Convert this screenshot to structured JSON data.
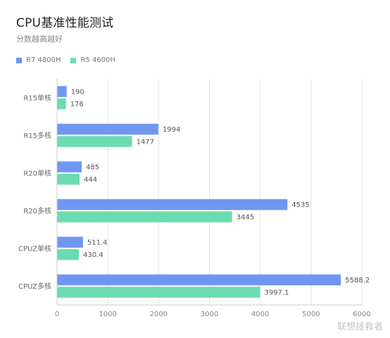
{
  "title": "CPU基准性能测试",
  "subtitle": "分数越高越好",
  "watermark": "联想拯救者",
  "colors": {
    "r7": "#6f97f2",
    "r5": "#6ddbb1",
    "grid": "#e4e4e4"
  },
  "chart_data": {
    "type": "bar",
    "orientation": "horizontal",
    "categories": [
      "R15单核",
      "R15多核",
      "R20单核",
      "R20多核",
      "CPUZ单核",
      "CPUZ多核"
    ],
    "series": [
      {
        "name": "R7 4800H",
        "values": [
          190,
          1994,
          485,
          4535,
          511.4,
          5588.2
        ],
        "labels": [
          "190",
          "1994",
          "485",
          "4535",
          "511.4",
          "5588.2"
        ]
      },
      {
        "name": "R5 4600H",
        "values": [
          176,
          1477,
          444,
          3445,
          430.4,
          3997.1
        ],
        "labels": [
          "176",
          "1477",
          "444",
          "3445",
          "430.4",
          "3997.1"
        ]
      }
    ],
    "xlim": [
      0,
      6000
    ],
    "xticks": [
      "0",
      "1000",
      "2000",
      "3000",
      "4000",
      "5000",
      "6000"
    ],
    "grid": "vertical",
    "legend": "top-left"
  }
}
